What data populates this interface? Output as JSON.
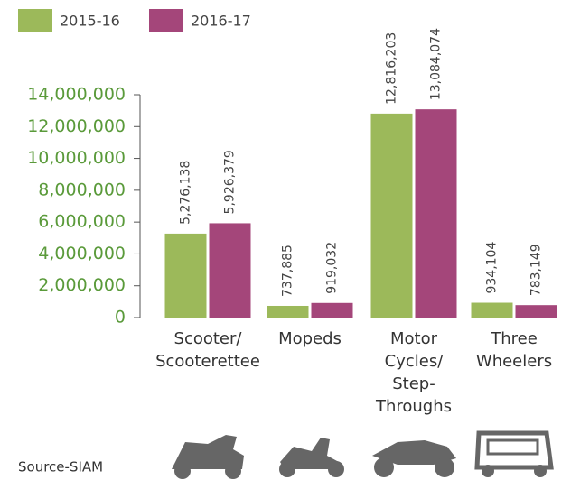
{
  "chart_data": {
    "type": "bar",
    "categories": [
      "Scooter/\nScooterettee",
      "Mopeds",
      "Motor\nCycles/\nStep-\nThroughs",
      "Three\nWheelers"
    ],
    "series": [
      {
        "name": "2015-16",
        "color": "#9cb95a",
        "values": [
          5276138,
          737885,
          12816203,
          934104
        ],
        "value_labels": [
          "5,276,138",
          "737,885",
          "12,816,203",
          "934,104"
        ]
      },
      {
        "name": "2016-17",
        "color": "#a4467a",
        "values": [
          5926379,
          919032,
          13084074,
          783149
        ],
        "value_labels": [
          "5,926,379",
          "919,032",
          "13,084,074",
          "783,149"
        ]
      }
    ],
    "ylim": [
      0,
      14000000
    ],
    "yticks": [
      0,
      {
        "value": 2000000,
        "label": "2,000,000"
      },
      {
        "value": 4000000,
        "label": "4,000,000"
      },
      {
        "value": 6000000,
        "label": "6,000,000"
      },
      {
        "value": 8000000,
        "label": "8,000,000"
      },
      {
        "value": 10000000,
        "label": "10,000,000"
      },
      {
        "value": 12000000,
        "label": "12,000,000"
      },
      {
        "value": 14000000,
        "label": "14,000,000"
      }
    ],
    "legend": "top-left",
    "source": "Source-SIAM"
  }
}
